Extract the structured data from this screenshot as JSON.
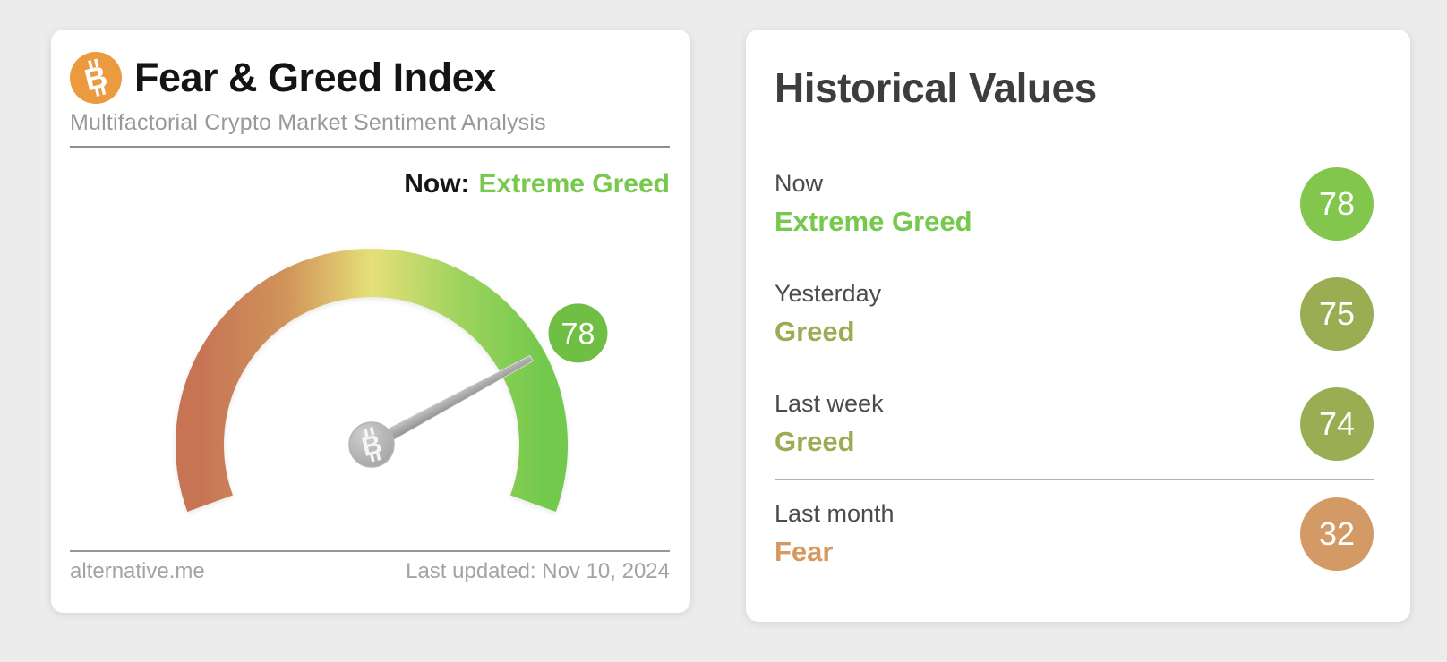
{
  "icons": {
    "bitcoin_glyph": "B",
    "bitcoin_orange": "#ec9a3f"
  },
  "colors": {
    "page_bg": "#ececec",
    "card_bg": "#ffffff",
    "extreme_greed_green": "#76c94c",
    "greed_olive": "#9aad53",
    "fear_tan": "#d8995f",
    "gauge_badge_green": "#6fbf44",
    "needle_gray": "#9b9b9b"
  },
  "gauge_card": {
    "title": "Fear & Greed Index",
    "subtitle": "Multifactorial Crypto Market Sentiment Analysis",
    "now_label": "Now:",
    "now_value": "Extreme Greed",
    "now_value_color": "#76c94c",
    "value_label": "78",
    "footer_source": "alternative.me",
    "footer_updated": "Last updated: Nov 10, 2024"
  },
  "historical_card": {
    "title": "Historical Values",
    "rows": [
      {
        "label": "Now",
        "classification": "Extreme Greed",
        "value": "78",
        "color": "#76c94c",
        "badge_color": "#83c64e"
      },
      {
        "label": "Yesterday",
        "classification": "Greed",
        "value": "75",
        "color": "#9aad53",
        "badge_color": "#9aad53"
      },
      {
        "label": "Last week",
        "classification": "Greed",
        "value": "74",
        "color": "#9aad53",
        "badge_color": "#9aad53"
      },
      {
        "label": "Last month",
        "classification": "Fear",
        "value": "32",
        "color": "#d8995f",
        "badge_color": "#d49a66"
      }
    ]
  },
  "chart_data": {
    "type": "gauge",
    "title": "Fear & Greed Index",
    "subtitle": "Multifactorial Crypto Market Sentiment Analysis",
    "value": 78,
    "min": 0,
    "max": 100,
    "classification": "Extreme Greed",
    "arc_start_deg": 200,
    "arc_end_deg": -20,
    "color_scale": [
      "#c77455",
      "#d0935a",
      "#e6df78",
      "#a0d35e",
      "#72c94c"
    ],
    "badge_color": "#6fbf44",
    "last_updated": "Nov 10, 2024",
    "source": "alternative.me",
    "historical": [
      {
        "label": "Now",
        "classification": "Extreme Greed",
        "value": 78
      },
      {
        "label": "Yesterday",
        "classification": "Greed",
        "value": 75
      },
      {
        "label": "Last week",
        "classification": "Greed",
        "value": 74
      },
      {
        "label": "Last month",
        "classification": "Fear",
        "value": 32
      }
    ]
  }
}
